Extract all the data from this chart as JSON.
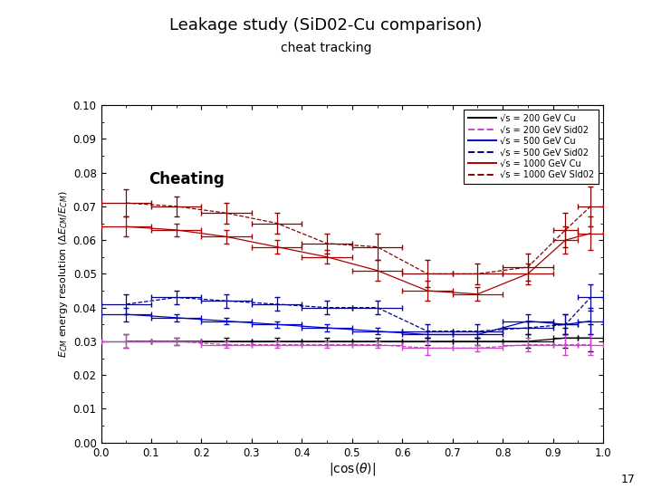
{
  "title": "Leakage study (SiD02-Cu comparison)",
  "subtitle": "cheat tracking",
  "xlabel": "|cos(θ)|",
  "cheating_label": "Cheating",
  "xlim": [
    0,
    1.0
  ],
  "ylim": [
    0,
    0.1
  ],
  "yticks": [
    0,
    0.01,
    0.02,
    0.03,
    0.04,
    0.05,
    0.06,
    0.07,
    0.08,
    0.09,
    0.1
  ],
  "xticks": [
    0,
    0.1,
    0.2,
    0.3,
    0.4,
    0.5,
    0.6,
    0.7,
    0.8,
    0.9,
    1.0
  ],
  "page_number": "17",
  "series": [
    {
      "label": "√s = 200 GeV Cu",
      "color": "#000000",
      "linestyle": "solid",
      "x": [
        0.05,
        0.15,
        0.25,
        0.35,
        0.45,
        0.55,
        0.65,
        0.75,
        0.85,
        0.925,
        0.975
      ],
      "y": [
        0.03,
        0.03,
        0.03,
        0.03,
        0.03,
        0.03,
        0.03,
        0.03,
        0.03,
        0.031,
        0.031
      ],
      "xerr": [
        0.05,
        0.05,
        0.05,
        0.05,
        0.05,
        0.05,
        0.05,
        0.05,
        0.05,
        0.025,
        0.025
      ],
      "yerr": [
        0.002,
        0.001,
        0.001,
        0.001,
        0.001,
        0.001,
        0.001,
        0.001,
        0.002,
        0.003,
        0.004
      ]
    },
    {
      "label": "√s = 200 GeV Sid02",
      "color": "#cc44cc",
      "linestyle": "dashed",
      "x": [
        0.05,
        0.15,
        0.25,
        0.35,
        0.45,
        0.55,
        0.65,
        0.75,
        0.85,
        0.925,
        0.975
      ],
      "y": [
        0.03,
        0.03,
        0.029,
        0.029,
        0.029,
        0.029,
        0.028,
        0.028,
        0.029,
        0.029,
        0.029
      ],
      "xerr": [
        0.05,
        0.05,
        0.05,
        0.05,
        0.05,
        0.05,
        0.05,
        0.05,
        0.05,
        0.025,
        0.025
      ],
      "yerr": [
        0.002,
        0.001,
        0.001,
        0.001,
        0.001,
        0.001,
        0.002,
        0.001,
        0.002,
        0.003,
        0.003
      ]
    },
    {
      "label": "√s = 500 GeV Cu",
      "color": "#0000cc",
      "linestyle": "solid",
      "x": [
        0.05,
        0.15,
        0.25,
        0.35,
        0.45,
        0.55,
        0.65,
        0.75,
        0.85,
        0.925,
        0.975
      ],
      "y": [
        0.038,
        0.037,
        0.036,
        0.035,
        0.034,
        0.033,
        0.032,
        0.032,
        0.036,
        0.035,
        0.036
      ],
      "xerr": [
        0.05,
        0.05,
        0.05,
        0.05,
        0.05,
        0.05,
        0.05,
        0.05,
        0.05,
        0.025,
        0.025
      ],
      "yerr": [
        0.002,
        0.001,
        0.001,
        0.001,
        0.001,
        0.001,
        0.001,
        0.001,
        0.002,
        0.003,
        0.004
      ]
    },
    {
      "label": "√s = 500 GeV Sid02",
      "color": "#000088",
      "linestyle": "dashed",
      "x": [
        0.05,
        0.15,
        0.25,
        0.35,
        0.45,
        0.55,
        0.65,
        0.75,
        0.85,
        0.925,
        0.975
      ],
      "y": [
        0.041,
        0.043,
        0.042,
        0.041,
        0.04,
        0.04,
        0.033,
        0.033,
        0.034,
        0.035,
        0.043
      ],
      "xerr": [
        0.05,
        0.05,
        0.05,
        0.05,
        0.05,
        0.05,
        0.05,
        0.05,
        0.05,
        0.025,
        0.025
      ],
      "yerr": [
        0.003,
        0.002,
        0.002,
        0.002,
        0.002,
        0.002,
        0.002,
        0.002,
        0.002,
        0.003,
        0.004
      ]
    },
    {
      "label": "√s = 1000 GeV Cu",
      "color": "#aa0000",
      "linestyle": "solid",
      "x": [
        0.05,
        0.15,
        0.25,
        0.35,
        0.45,
        0.55,
        0.65,
        0.75,
        0.85,
        0.925,
        0.975
      ],
      "y": [
        0.064,
        0.063,
        0.061,
        0.058,
        0.055,
        0.051,
        0.045,
        0.044,
        0.05,
        0.06,
        0.062
      ],
      "xerr": [
        0.05,
        0.05,
        0.05,
        0.05,
        0.05,
        0.05,
        0.05,
        0.05,
        0.05,
        0.025,
        0.025
      ],
      "yerr": [
        0.003,
        0.002,
        0.002,
        0.002,
        0.002,
        0.003,
        0.003,
        0.002,
        0.003,
        0.004,
        0.005
      ]
    },
    {
      "label": "√s = 1000 GeV SId02",
      "color": "#880000",
      "linestyle": "dashed",
      "x": [
        0.05,
        0.15,
        0.25,
        0.35,
        0.45,
        0.55,
        0.65,
        0.75,
        0.85,
        0.925,
        0.975
      ],
      "y": [
        0.071,
        0.07,
        0.068,
        0.065,
        0.059,
        0.058,
        0.05,
        0.05,
        0.052,
        0.063,
        0.07
      ],
      "xerr": [
        0.05,
        0.05,
        0.05,
        0.05,
        0.05,
        0.05,
        0.05,
        0.05,
        0.05,
        0.025,
        0.025
      ],
      "yerr": [
        0.004,
        0.003,
        0.003,
        0.003,
        0.003,
        0.004,
        0.004,
        0.003,
        0.004,
        0.005,
        0.006
      ]
    }
  ]
}
